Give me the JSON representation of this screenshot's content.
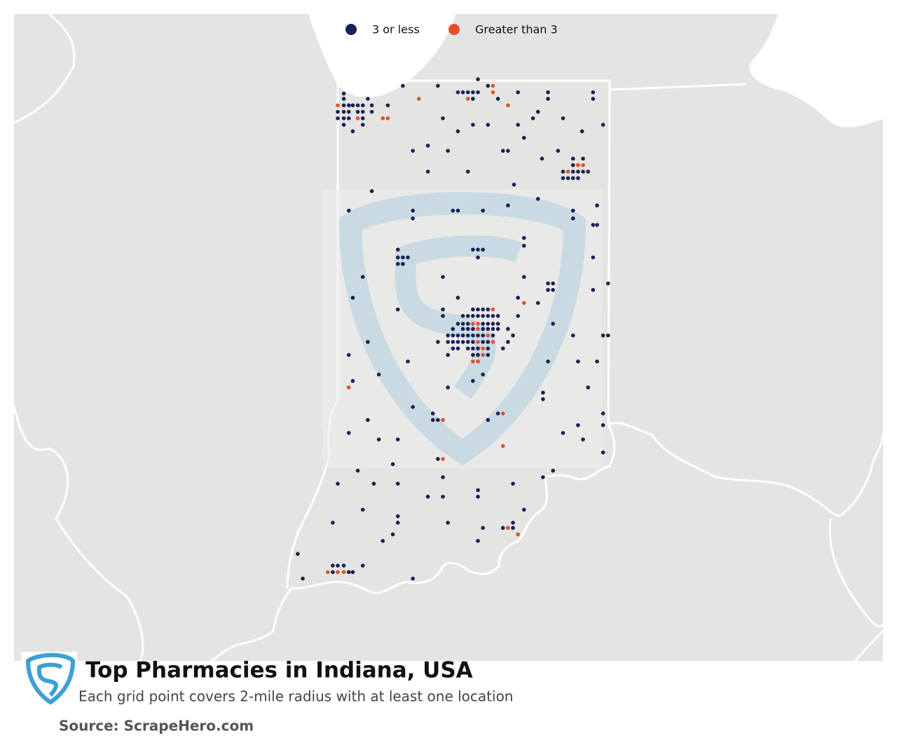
{
  "chart_data": {
    "type": "map",
    "title": "Top Pharmacies in Indiana, USA",
    "subtitle": "Each grid point covers 2-mile radius with at least one location",
    "source": "Source: ScrapeHero.com",
    "series": [
      {
        "name": "3 or less",
        "color": "#1a2156",
        "x": [
          -86.13,
          -86.88,
          -86.53,
          -86.03,
          -86.33,
          -86.28,
          -86.23,
          -86.18,
          -86.13,
          -85.73,
          -85.43,
          -84.98,
          -87.47,
          -87.47,
          -87.23,
          -86.18,
          -85.93,
          -85.43,
          -84.98,
          -87.47,
          -87.42,
          -87.38,
          -87.33,
          -87.28,
          -87.19,
          -87.03,
          -87.53,
          -87.47,
          -87.42,
          -87.33,
          -87.28,
          -87.19,
          -85.53,
          -87.53,
          -87.47,
          -87.42,
          -87.28,
          -86.48,
          -85.58,
          -85.28,
          -87.47,
          -87.28,
          -86.18,
          -86.03,
          -85.73,
          -84.88,
          -87.38,
          -86.33,
          -85.09,
          -85.67,
          -86.63,
          -86.78,
          -86.43,
          -85.88,
          -85.83,
          -85.33,
          -85.49,
          -85.18,
          -85.08,
          -85.18,
          -86.63,
          -86.23,
          -85.28,
          -85.18,
          -85.13,
          -85.08,
          -85.03,
          -85.28,
          -85.23,
          -85.18,
          -85.13,
          -85.77,
          -87.19,
          -85.53,
          -85.83,
          -84.94,
          -87.42,
          -86.78,
          -86.38,
          -86.33,
          -86.08,
          -85.18,
          -86.78,
          -85.18,
          -84.98,
          -84.94,
          -85.67,
          -85.67,
          -86.93,
          -86.18,
          -86.13,
          -86.08,
          -86.93,
          -86.88,
          -86.83,
          -86.13,
          -84.98,
          -86.93,
          -86.88,
          -87.28,
          -86.48,
          -85.67,
          -85.43,
          -85.38,
          -84.83,
          -85.43,
          -85.38,
          -84.98,
          -87.38,
          -86.33,
          -85.73,
          -85.53,
          -86.93,
          -86.48,
          -86.18,
          -86.13,
          -86.08,
          -86.03,
          -86.48,
          -86.28,
          -86.23,
          -86.18,
          -86.13,
          -86.08,
          -86.03,
          -85.98,
          -85.93,
          -85.73,
          -86.33,
          -86.28,
          -86.23,
          -86.08,
          -86.03,
          -85.98,
          -85.93,
          -85.38,
          -86.38,
          -86.28,
          -86.23,
          -86.18,
          -86.08,
          -86.03,
          -85.98,
          -85.93,
          -85.83,
          -86.43,
          -86.38,
          -86.33,
          -86.28,
          -86.23,
          -86.18,
          -86.13,
          -86.08,
          -85.98,
          -85.78,
          -85.18,
          -84.88,
          -84.83,
          -87.23,
          -86.53,
          -86.43,
          -86.38,
          -86.33,
          -86.28,
          -86.23,
          -86.18,
          -86.08,
          -86.03,
          -85.83,
          -86.38,
          -86.33,
          -86.23,
          -86.18,
          -86.13,
          -86.03,
          -85.88,
          -87.42,
          -86.43,
          -86.18,
          -86.13,
          -86.03,
          -86.83,
          -85.43,
          -85.13,
          -84.94,
          -87.12,
          -86.08,
          -87.38,
          -86.18,
          -86.43,
          -85.03,
          -85.48,
          -85.48,
          -86.78,
          -86.58,
          -85.93,
          -84.88,
          -86.58,
          -86.53,
          -87.23,
          -86.03,
          -85.13,
          -84.88,
          -87.42,
          -85.28,
          -87.12,
          -86.93,
          -85.08,
          -84.88,
          -86.53,
          -86.98,
          -87.33,
          -85.38,
          -86.48,
          -85.48,
          -87.53,
          -87.17,
          -86.93,
          -85.78,
          -86.13,
          -86.63,
          -86.48,
          -86.13,
          -87.28,
          -85.67,
          -86.93,
          -87.58,
          -86.93,
          -86.43,
          -85.78,
          -86.08,
          -85.88,
          -85.78,
          -86.98,
          -87.08,
          -86.13,
          -87.93,
          -87.58,
          -87.53,
          -87.47,
          -87.28,
          -87.58,
          -87.42,
          -87.38,
          -87.88,
          -86.78
        ],
        "values": [
          41.77,
          41.72,
          41.72,
          41.72,
          41.67,
          41.67,
          41.67,
          41.67,
          41.67,
          41.67,
          41.67,
          41.67,
          41.66,
          41.62,
          41.62,
          41.62,
          41.62,
          41.62,
          41.62,
          41.57,
          41.57,
          41.57,
          41.57,
          41.57,
          41.57,
          41.57,
          41.52,
          41.52,
          41.52,
          41.52,
          41.52,
          41.52,
          41.52,
          41.47,
          41.47,
          41.47,
          41.47,
          41.47,
          41.47,
          41.47,
          41.42,
          41.42,
          41.42,
          41.42,
          41.42,
          41.42,
          41.37,
          41.37,
          41.37,
          41.32,
          41.26,
          41.22,
          41.22,
          41.22,
          41.22,
          41.22,
          41.16,
          41.16,
          41.16,
          41.11,
          41.06,
          41.06,
          41.06,
          41.06,
          41.06,
          41.06,
          41.06,
          41.01,
          41.01,
          41.01,
          41.01,
          40.96,
          40.91,
          40.85,
          40.8,
          40.8,
          40.76,
          40.76,
          40.76,
          40.76,
          40.76,
          40.76,
          40.7,
          40.7,
          40.65,
          40.65,
          40.55,
          40.49,
          40.46,
          40.46,
          40.46,
          40.46,
          40.4,
          40.4,
          40.4,
          40.4,
          40.4,
          40.35,
          40.35,
          40.25,
          40.25,
          40.25,
          40.2,
          40.2,
          40.2,
          40.15,
          40.15,
          40.15,
          40.09,
          40.09,
          40.09,
          40.05,
          40.0,
          40.0,
          40.0,
          40.0,
          40.0,
          40.0,
          39.95,
          39.95,
          39.95,
          39.95,
          39.95,
          39.95,
          39.95,
          39.95,
          39.95,
          39.95,
          39.89,
          39.89,
          39.89,
          39.89,
          39.89,
          39.89,
          39.89,
          39.89,
          39.85,
          39.85,
          39.85,
          39.85,
          39.85,
          39.85,
          39.85,
          39.85,
          39.85,
          39.8,
          39.8,
          39.8,
          39.8,
          39.8,
          39.8,
          39.8,
          39.8,
          39.8,
          39.8,
          39.8,
          39.8,
          39.8,
          39.75,
          39.75,
          39.75,
          39.75,
          39.75,
          39.75,
          39.75,
          39.75,
          39.75,
          39.75,
          39.75,
          39.7,
          39.7,
          39.7,
          39.7,
          39.7,
          39.7,
          39.7,
          39.65,
          39.65,
          39.65,
          39.65,
          39.65,
          39.6,
          39.6,
          39.6,
          39.6,
          39.5,
          39.5,
          39.45,
          39.45,
          39.4,
          39.4,
          39.36,
          39.31,
          39.25,
          39.2,
          39.2,
          39.2,
          39.15,
          39.15,
          39.15,
          39.15,
          39.11,
          39.11,
          39.05,
          39.05,
          39.0,
          39.0,
          39.0,
          38.9,
          38.85,
          38.81,
          38.76,
          38.76,
          38.71,
          38.71,
          38.66,
          38.66,
          38.66,
          38.66,
          38.61,
          38.56,
          38.56,
          38.56,
          38.46,
          38.46,
          38.41,
          38.36,
          38.36,
          38.36,
          38.36,
          38.32,
          38.32,
          38.32,
          38.27,
          38.22,
          38.22,
          38.12,
          38.03,
          38.03,
          38.03,
          38.03,
          37.98,
          37.98,
          37.98,
          37.93,
          37.93
        ]
      },
      {
        "name": "Greater than 3",
        "color": "#e4502a",
        "x": [
          -85.98,
          -85.98,
          -86.23,
          -86.72,
          -87.53,
          -85.83,
          -87.33,
          -87.08,
          -87.03,
          -85.13,
          -85.08,
          -85.23,
          -85.67,
          -85.98,
          -86.18,
          -86.13,
          -86.13,
          -86.03,
          -86.13,
          -85.98,
          -86.08,
          -86.08,
          -86.18,
          -86.13,
          -87.42,
          -85.88,
          -86.48,
          -85.88,
          -86.48,
          -85.83,
          -85.73,
          -87.63,
          -87.53,
          -87.47
        ],
        "values": [
          41.72,
          41.67,
          41.62,
          41.62,
          41.57,
          41.57,
          41.47,
          41.47,
          41.47,
          41.11,
          41.11,
          41.06,
          40.05,
          40.0,
          39.89,
          39.89,
          39.85,
          39.8,
          39.75,
          39.75,
          39.7,
          39.65,
          39.6,
          39.6,
          39.4,
          39.2,
          39.15,
          38.95,
          38.85,
          38.32,
          38.27,
          37.98,
          37.98,
          37.98
        ]
      }
    ]
  }
}
